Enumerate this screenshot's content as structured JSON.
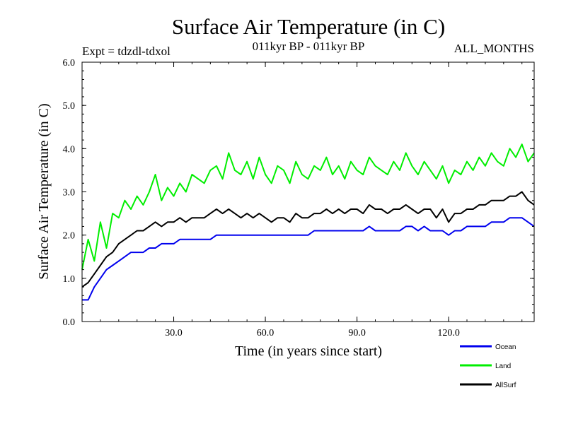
{
  "chart_data": {
    "type": "line",
    "title": "Surface Air Temperature (in C)",
    "left_note": "Expt = tdzdl-tdxol",
    "subtitle": "011kyr BP - 011kyr BP",
    "right_note": "ALL_MONTHS",
    "xlabel": "Time (in years since start)",
    "ylabel": "Surface Air Temperature (in C)",
    "xlim": [
      0,
      148
    ],
    "ylim": [
      0,
      6
    ],
    "xticks": [
      30,
      60,
      90,
      120
    ],
    "xtick_labels": [
      "30.0",
      "60.0",
      "90.0",
      "120.0"
    ],
    "yticks": [
      0,
      1,
      2,
      3,
      4,
      5,
      6
    ],
    "ytick_labels": [
      "0.0",
      "1.0",
      "2.0",
      "3.0",
      "4.0",
      "5.0",
      "6.0"
    ],
    "legend_position": "bottom-right",
    "series": [
      {
        "name": "Land",
        "color": "#00ee00",
        "x": [
          0,
          2,
          4,
          6,
          8,
          10,
          12,
          14,
          16,
          18,
          20,
          22,
          24,
          26,
          28,
          30,
          32,
          34,
          36,
          38,
          40,
          42,
          44,
          46,
          48,
          50,
          52,
          54,
          56,
          58,
          60,
          62,
          64,
          66,
          68,
          70,
          72,
          74,
          76,
          78,
          80,
          82,
          84,
          86,
          88,
          90,
          92,
          94,
          96,
          98,
          100,
          102,
          104,
          106,
          108,
          110,
          112,
          114,
          116,
          118,
          120,
          122,
          124,
          126,
          128,
          130,
          132,
          134,
          136,
          138,
          140,
          142,
          144,
          146,
          148
        ],
        "values": [
          1.2,
          1.9,
          1.4,
          2.3,
          1.7,
          2.5,
          2.4,
          2.8,
          2.6,
          2.9,
          2.7,
          3.0,
          3.4,
          2.8,
          3.1,
          2.9,
          3.2,
          3.0,
          3.4,
          3.3,
          3.2,
          3.5,
          3.6,
          3.3,
          3.9,
          3.5,
          3.4,
          3.7,
          3.3,
          3.8,
          3.4,
          3.2,
          3.6,
          3.5,
          3.2,
          3.7,
          3.4,
          3.3,
          3.6,
          3.5,
          3.8,
          3.4,
          3.6,
          3.3,
          3.7,
          3.5,
          3.4,
          3.8,
          3.6,
          3.5,
          3.4,
          3.7,
          3.5,
          3.9,
          3.6,
          3.4,
          3.7,
          3.5,
          3.3,
          3.6,
          3.2,
          3.5,
          3.4,
          3.7,
          3.5,
          3.8,
          3.6,
          3.9,
          3.7,
          3.6,
          4.0,
          3.8,
          4.1,
          3.7,
          3.9
        ]
      },
      {
        "name": "AllSurf",
        "color": "#000000",
        "x": [
          0,
          2,
          4,
          6,
          8,
          10,
          12,
          14,
          16,
          18,
          20,
          22,
          24,
          26,
          28,
          30,
          32,
          34,
          36,
          38,
          40,
          42,
          44,
          46,
          48,
          50,
          52,
          54,
          56,
          58,
          60,
          62,
          64,
          66,
          68,
          70,
          72,
          74,
          76,
          78,
          80,
          82,
          84,
          86,
          88,
          90,
          92,
          94,
          96,
          98,
          100,
          102,
          104,
          106,
          108,
          110,
          112,
          114,
          116,
          118,
          120,
          122,
          124,
          126,
          128,
          130,
          132,
          134,
          136,
          138,
          140,
          142,
          144,
          146,
          148
        ],
        "values": [
          0.8,
          0.9,
          1.1,
          1.3,
          1.5,
          1.6,
          1.8,
          1.9,
          2.0,
          2.1,
          2.1,
          2.2,
          2.3,
          2.2,
          2.3,
          2.3,
          2.4,
          2.3,
          2.4,
          2.4,
          2.4,
          2.5,
          2.6,
          2.5,
          2.6,
          2.5,
          2.4,
          2.5,
          2.4,
          2.5,
          2.4,
          2.3,
          2.4,
          2.4,
          2.3,
          2.5,
          2.4,
          2.4,
          2.5,
          2.5,
          2.6,
          2.5,
          2.6,
          2.5,
          2.6,
          2.6,
          2.5,
          2.7,
          2.6,
          2.6,
          2.5,
          2.6,
          2.6,
          2.7,
          2.6,
          2.5,
          2.6,
          2.6,
          2.4,
          2.6,
          2.3,
          2.5,
          2.5,
          2.6,
          2.6,
          2.7,
          2.7,
          2.8,
          2.8,
          2.8,
          2.9,
          2.9,
          3.0,
          2.8,
          2.7
        ]
      },
      {
        "name": "Ocean",
        "color": "#0000ee",
        "x": [
          0,
          2,
          4,
          6,
          8,
          10,
          12,
          14,
          16,
          18,
          20,
          22,
          24,
          26,
          28,
          30,
          32,
          34,
          36,
          38,
          40,
          42,
          44,
          46,
          48,
          50,
          52,
          54,
          56,
          58,
          60,
          62,
          64,
          66,
          68,
          70,
          72,
          74,
          76,
          78,
          80,
          82,
          84,
          86,
          88,
          90,
          92,
          94,
          96,
          98,
          100,
          102,
          104,
          106,
          108,
          110,
          112,
          114,
          116,
          118,
          120,
          122,
          124,
          126,
          128,
          130,
          132,
          134,
          136,
          138,
          140,
          142,
          144,
          146,
          148
        ],
        "values": [
          0.5,
          0.5,
          0.8,
          1.0,
          1.2,
          1.3,
          1.4,
          1.5,
          1.6,
          1.6,
          1.6,
          1.7,
          1.7,
          1.8,
          1.8,
          1.8,
          1.9,
          1.9,
          1.9,
          1.9,
          1.9,
          1.9,
          2.0,
          2.0,
          2.0,
          2.0,
          2.0,
          2.0,
          2.0,
          2.0,
          2.0,
          2.0,
          2.0,
          2.0,
          2.0,
          2.0,
          2.0,
          2.0,
          2.1,
          2.1,
          2.1,
          2.1,
          2.1,
          2.1,
          2.1,
          2.1,
          2.1,
          2.2,
          2.1,
          2.1,
          2.1,
          2.1,
          2.1,
          2.2,
          2.2,
          2.1,
          2.2,
          2.1,
          2.1,
          2.1,
          2.0,
          2.1,
          2.1,
          2.2,
          2.2,
          2.2,
          2.2,
          2.3,
          2.3,
          2.3,
          2.4,
          2.4,
          2.4,
          2.3,
          2.2
        ]
      }
    ]
  }
}
